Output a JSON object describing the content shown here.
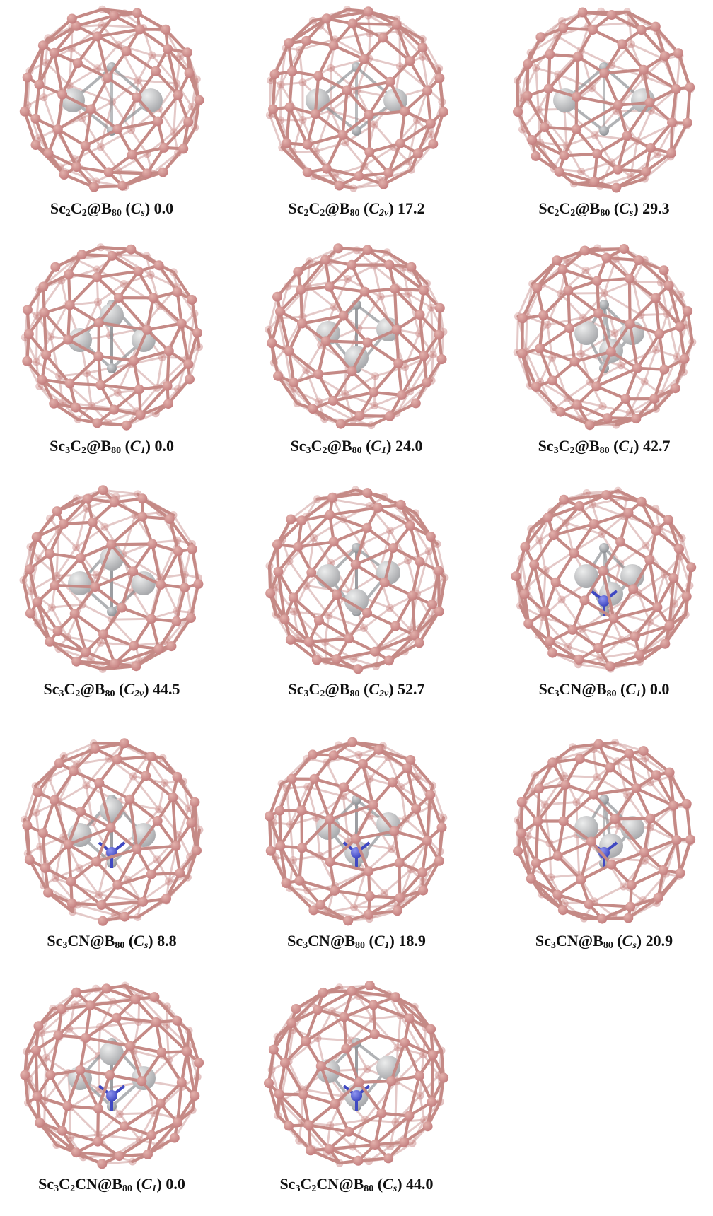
{
  "panels": [
    {
      "formula": [
        "Sc",
        "2",
        "C",
        "2",
        "@B",
        "80"
      ],
      "symmetry": [
        "C",
        "s"
      ],
      "energy": "0.0",
      "metal_count": 2,
      "has_nitrogen": false
    },
    {
      "formula": [
        "Sc",
        "2",
        "C",
        "2",
        "@B",
        "80"
      ],
      "symmetry": [
        "C",
        "2v"
      ],
      "energy": "17.2",
      "metal_count": 2,
      "has_nitrogen": false
    },
    {
      "formula": [
        "Sc",
        "2",
        "C",
        "2",
        "@B",
        "80"
      ],
      "symmetry": [
        "C",
        "s"
      ],
      "energy": "29.3",
      "metal_count": 2,
      "has_nitrogen": false
    },
    {
      "formula": [
        "Sc",
        "3",
        "C",
        "2",
        "@B",
        "80"
      ],
      "symmetry": [
        "C",
        "1"
      ],
      "energy": "0.0",
      "metal_count": 3,
      "has_nitrogen": false
    },
    {
      "formula": [
        "Sc",
        "3",
        "C",
        "2",
        "@B",
        "80"
      ],
      "symmetry": [
        "C",
        "1"
      ],
      "energy": "24.0",
      "metal_count": 3,
      "has_nitrogen": false
    },
    {
      "formula": [
        "Sc",
        "3",
        "C",
        "2",
        "@B",
        "80"
      ],
      "symmetry": [
        "C",
        "1"
      ],
      "energy": "42.7",
      "metal_count": 3,
      "has_nitrogen": false
    },
    {
      "formula": [
        "Sc",
        "3",
        "C",
        "2",
        "@B",
        "80"
      ],
      "symmetry": [
        "C",
        "2v"
      ],
      "energy": "44.5",
      "metal_count": 3,
      "has_nitrogen": false
    },
    {
      "formula": [
        "Sc",
        "3",
        "C",
        "2",
        "@B",
        "80"
      ],
      "symmetry": [
        "C",
        "2v"
      ],
      "energy": "52.7",
      "metal_count": 3,
      "has_nitrogen": false
    },
    {
      "formula": [
        "Sc",
        "3",
        "CN@B",
        "80"
      ],
      "symmetry": [
        "C",
        "1"
      ],
      "energy": "0.0",
      "metal_count": 3,
      "has_nitrogen": true
    },
    {
      "formula": [
        "Sc",
        "3",
        "CN@B",
        "80"
      ],
      "symmetry": [
        "C",
        "s"
      ],
      "energy": "8.8",
      "metal_count": 3,
      "has_nitrogen": true
    },
    {
      "formula": [
        "Sc",
        "3",
        "CN@B",
        "80"
      ],
      "symmetry": [
        "C",
        "1"
      ],
      "energy": "18.9",
      "metal_count": 3,
      "has_nitrogen": true
    },
    {
      "formula": [
        "Sc",
        "3",
        "CN@B",
        "80"
      ],
      "symmetry": [
        "C",
        "s"
      ],
      "energy": "20.9",
      "metal_count": 3,
      "has_nitrogen": true
    },
    {
      "formula": [
        "Sc",
        "3",
        "C",
        "2",
        "CN@B",
        "80"
      ],
      "symmetry": [
        "C",
        "1"
      ],
      "energy": "0.0",
      "metal_count": 3,
      "has_nitrogen": true
    },
    {
      "formula": [
        "Sc",
        "3",
        "C",
        "2",
        "CN@B",
        "80"
      ],
      "symmetry": [
        "C",
        "s"
      ],
      "energy": "44.0",
      "metal_count": 3,
      "has_nitrogen": true
    }
  ],
  "colors": {
    "boron": "#c47f7f",
    "boron_highlight": "#e3b2ad",
    "bond": "#c58a86",
    "scandium": "#a9aaad",
    "carbon": "#8f9296",
    "nitrogen": "#3f48c2",
    "text": "#111111"
  }
}
